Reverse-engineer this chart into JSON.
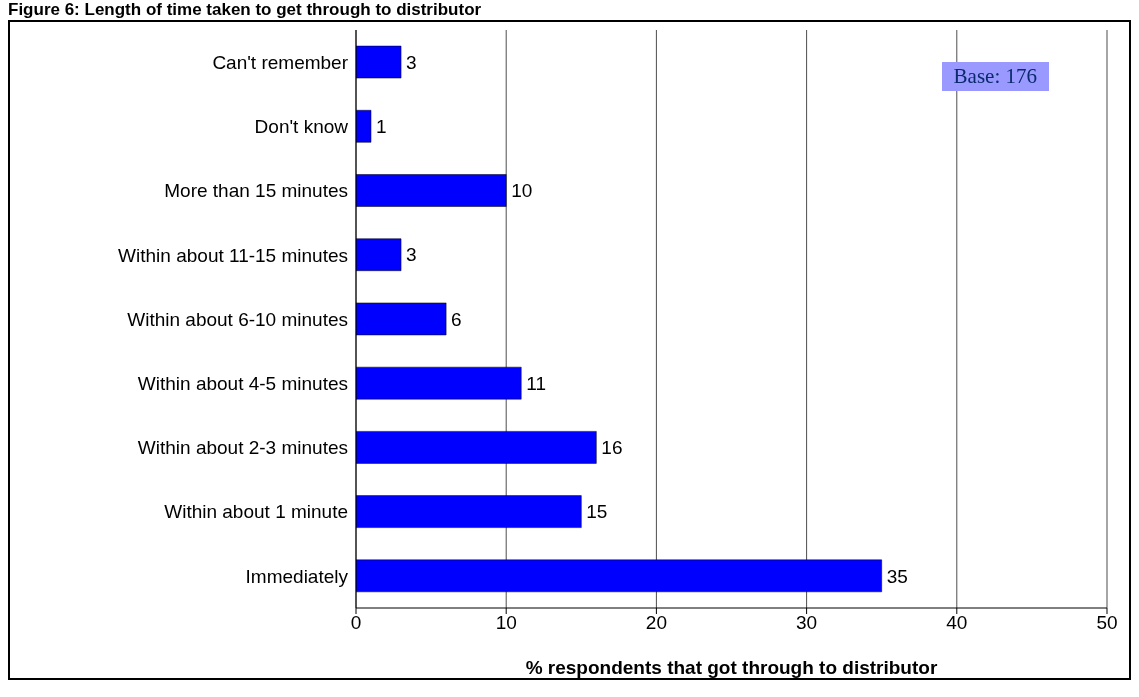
{
  "chart_data": {
    "type": "bar",
    "orientation": "horizontal",
    "title": "Figure 6: Length of time taken to get through to distributor",
    "categories": [
      "Can't remember",
      "Don't know",
      "More than 15 minutes",
      "Within about 11-15 minutes",
      "Within about 6-10 minutes",
      "Within about 4-5 minutes",
      "Within about 2-3 minutes",
      "Within about 1 minute",
      "Immediately"
    ],
    "values": [
      3,
      1,
      10,
      3,
      6,
      11,
      16,
      15,
      35
    ],
    "color": "#0000ff",
    "xlim": [
      0,
      50
    ],
    "xticks": [
      0,
      10,
      20,
      30,
      40,
      50
    ],
    "xlabel": "% respondents that got through to distributor",
    "grid": "x",
    "data_labels": true,
    "annotations": [
      "Base: 176"
    ]
  }
}
